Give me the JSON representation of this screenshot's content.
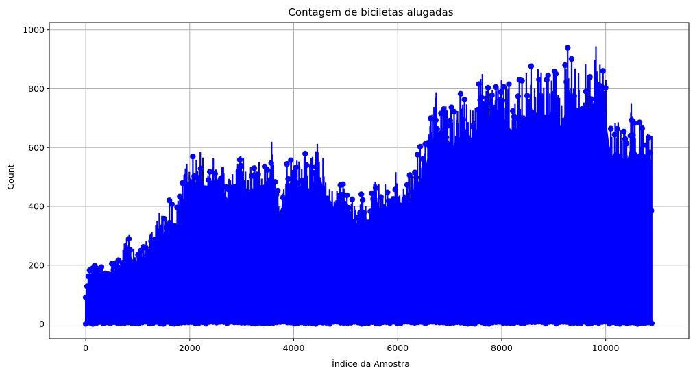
{
  "chart_data": {
    "type": "line",
    "title": "Contagem de biciletas alugadas",
    "xlabel": "Índice da Amostra",
    "ylabel": "Count",
    "xlim": [
      -700,
      11600
    ],
    "ylim": [
      -50,
      1025
    ],
    "xticks": [
      0,
      2000,
      4000,
      6000,
      8000,
      10000
    ],
    "yticks": [
      0,
      200,
      400,
      600,
      800,
      1000
    ],
    "grid": true,
    "legend": "none",
    "marker": "circle",
    "color": "#0000ff",
    "n_points": 10886,
    "series": [
      {
        "envelope_x": [
          0,
          100,
          200,
          300,
          400,
          500,
          600,
          700,
          800,
          900,
          1000,
          1100,
          1200,
          1300,
          1400,
          1500,
          1600,
          1700,
          1800,
          1900,
          2000,
          2100,
          2200,
          2300,
          2400,
          2500,
          2600,
          2700,
          2800,
          2900,
          3000,
          3100,
          3200,
          3300,
          3400,
          3500,
          3600,
          3700,
          3800,
          3900,
          4000,
          4100,
          4200,
          4300,
          4400,
          4500,
          4600,
          4700,
          4800,
          4900,
          5000,
          5100,
          5200,
          5300,
          5400,
          5500,
          5600,
          5700,
          5800,
          5900,
          6000,
          6100,
          6200,
          6300,
          6400,
          6500,
          6600,
          6700,
          6800,
          6900,
          7000,
          7100,
          7200,
          7300,
          7400,
          7500,
          7600,
          7700,
          7800,
          7900,
          8000,
          8100,
          8200,
          8300,
          8400,
          8500,
          8600,
          8700,
          8800,
          8900,
          9000,
          9100,
          9200,
          9300,
          9400,
          9500,
          9600,
          9700,
          9800,
          9900,
          10000,
          10100,
          10200,
          10300,
          10400,
          10500,
          10600,
          10700,
          10800,
          10886
        ],
        "envelope_max": [
          110,
          215,
          220,
          200,
          180,
          210,
          230,
          250,
          330,
          260,
          250,
          265,
          305,
          330,
          385,
          360,
          450,
          390,
          430,
          540,
          610,
          580,
          605,
          570,
          580,
          580,
          637,
          500,
          595,
          560,
          590,
          560,
          555,
          585,
          570,
          600,
          628,
          450,
          500,
          580,
          600,
          560,
          590,
          560,
          600,
          625,
          530,
          520,
          470,
          520,
          440,
          450,
          400,
          465,
          400,
          460,
          510,
          460,
          490,
          540,
          510,
          500,
          520,
          525,
          600,
          610,
          720,
          780,
          800,
          825,
          740,
          740,
          780,
          815,
          770,
          790,
          875,
          860,
          870,
          860,
          870,
          830,
          800,
          810,
          875,
          850,
          890,
          870,
          850,
          860,
          900,
          800,
          860,
          975,
          890,
          900,
          910,
          870,
          950,
          940,
          860,
          690,
          720,
          700,
          660,
          760,
          700,
          720,
          690,
          680
        ]
      }
    ]
  }
}
